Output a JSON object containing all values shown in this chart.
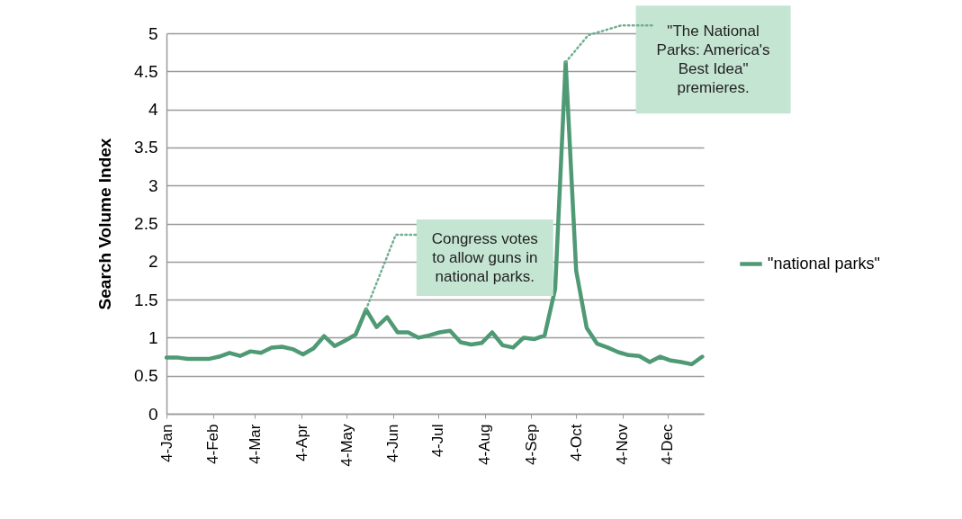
{
  "chart_data": {
    "type": "line",
    "ylabel": "Search Volume Index",
    "x": [
      "--01-04",
      "--01-11",
      "--01-18",
      "--01-25",
      "--02-01",
      "--02-08",
      "--02-15",
      "--02-22",
      "--03-01",
      "--03-08",
      "--03-15",
      "--03-22",
      "--03-29",
      "--04-05",
      "--04-12",
      "--04-19",
      "--04-26",
      "--05-03",
      "--05-10",
      "--05-17",
      "--05-24",
      "--05-31",
      "--06-07",
      "--06-14",
      "--06-21",
      "--06-28",
      "--07-05",
      "--07-12",
      "--07-19",
      "--07-26",
      "--08-02",
      "--08-09",
      "--08-16",
      "--08-23",
      "--08-30",
      "--09-06",
      "--09-13",
      "--09-20",
      "--09-27",
      "--10-04",
      "--10-11",
      "--10-18",
      "--10-25",
      "--11-01",
      "--11-08",
      "--11-15",
      "--11-22",
      "--11-29",
      "--12-06",
      "--12-13",
      "--12-20",
      "--12-27"
    ],
    "series": [
      {
        "name": "\"national parks\"",
        "color": "#4f9a74",
        "values": [
          0.74,
          0.74,
          0.72,
          0.72,
          0.72,
          0.75,
          0.8,
          0.76,
          0.82,
          0.8,
          0.87,
          0.88,
          0.85,
          0.78,
          0.86,
          1.02,
          0.89,
          0.96,
          1.04,
          1.37,
          1.14,
          1.27,
          1.07,
          1.07,
          1.0,
          1.03,
          1.07,
          1.09,
          0.94,
          0.91,
          0.93,
          1.07,
          0.9,
          0.87,
          1.0,
          0.98,
          1.03,
          1.64,
          4.62,
          1.88,
          1.13,
          0.92,
          0.87,
          0.81,
          0.77,
          0.76,
          0.68,
          0.75,
          0.7,
          0.68,
          0.65,
          0.75
        ]
      }
    ],
    "xlim": [
      "--01-04",
      "--12-28"
    ],
    "xticks": [
      {
        "value": "--01-04",
        "label": "4-Jan"
      },
      {
        "value": "--02-04",
        "label": "4-Feb"
      },
      {
        "value": "--03-04",
        "label": "4-Mar"
      },
      {
        "value": "--04-04",
        "label": "4-Apr"
      },
      {
        "value": "--05-04",
        "label": "4-May"
      },
      {
        "value": "--06-04",
        "label": "4-Jun"
      },
      {
        "value": "--07-04",
        "label": "4-Jul"
      },
      {
        "value": "--08-04",
        "label": "4-Aug"
      },
      {
        "value": "--09-04",
        "label": "4-Sep"
      },
      {
        "value": "--10-04",
        "label": "4-Oct"
      },
      {
        "value": "--11-04",
        "label": "4-Nov"
      },
      {
        "value": "--12-04",
        "label": "4-Dec"
      }
    ],
    "ylim": [
      0,
      5
    ],
    "yticks": [
      0,
      0.5,
      1,
      1.5,
      2,
      2.5,
      3,
      3.5,
      4,
      4.5,
      5
    ],
    "grid": "y",
    "legend": "right",
    "marker": "none",
    "line_style": "solid",
    "annotations": [
      {
        "text": "Congress votes\nto allow guns in\nnational parks.",
        "x": "--05-17",
        "y": 1.37
      },
      {
        "text": "\"The National\nParks: America's\nBest Idea\"\npremieres.",
        "x": "--09-27",
        "y": 4.62
      }
    ]
  }
}
